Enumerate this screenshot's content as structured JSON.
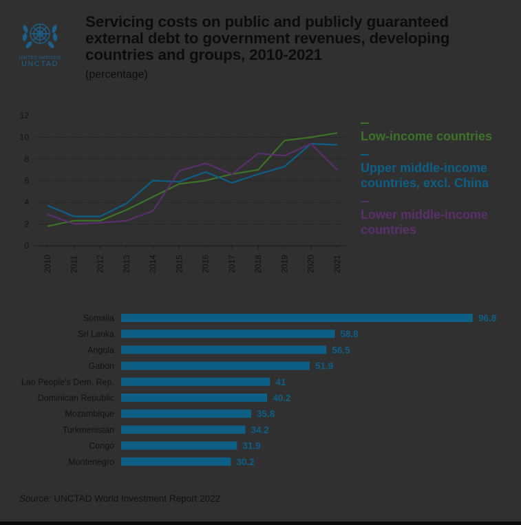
{
  "logo": {
    "line1": "UNITED NATIONS",
    "line2": "UNCTAD"
  },
  "header": {
    "title": "Servicing costs on public and publicly guaranteed external debt to government revenues, developing countries and groups, 2010-2021",
    "subtitle": "(percentage)"
  },
  "source": {
    "label": "Source:",
    "text": " UNCTAD World Investment Report 2022."
  },
  "colors": {
    "low_income": "#3d7328",
    "upper_middle": "#0e5f86",
    "lower_middle": "#5b2f6b",
    "bar": "#0e5f86",
    "axis_text": "#111111",
    "grid": "#1a1a1a"
  },
  "chart_data": [
    {
      "type": "line",
      "x": [
        "2010",
        "2011",
        "2012",
        "2013",
        "2014",
        "2015",
        "2016",
        "2017",
        "2018",
        "2019",
        "2020",
        "2021"
      ],
      "ylim": [
        0,
        12
      ],
      "yticks": [
        0,
        2,
        4,
        6,
        8,
        10,
        12
      ],
      "grid": true,
      "legend_position": "right",
      "series": [
        {
          "name": "Low-income countries",
          "color_key": "low_income",
          "values": [
            1.8,
            2.3,
            2.3,
            3.3,
            4.5,
            5.7,
            6.0,
            6.6,
            7.0,
            9.7,
            10.0,
            10.4
          ]
        },
        {
          "name": "Upper middle-income countries, excl. China",
          "color_key": "upper_middle",
          "values": [
            3.7,
            2.7,
            2.7,
            3.9,
            6.0,
            5.9,
            6.8,
            5.8,
            6.6,
            7.3,
            9.4,
            9.3
          ]
        },
        {
          "name": "Lower middle-income countries",
          "color_key": "lower_middle",
          "values": [
            2.9,
            2.0,
            2.1,
            2.3,
            3.2,
            6.9,
            7.6,
            6.6,
            8.5,
            8.3,
            9.4,
            7.0
          ]
        }
      ],
      "legend": [
        {
          "lines": [
            "Low-income countries"
          ],
          "color_key": "low_income"
        },
        {
          "lines": [
            "Upper middle-income",
            "countries, excl. China"
          ],
          "color_key": "upper_middle"
        },
        {
          "lines": [
            "Lower middle-income",
            "countries"
          ],
          "color_key": "lower_middle"
        }
      ]
    },
    {
      "type": "bar",
      "orientation": "horizontal",
      "categories": [
        "Somalia",
        "Sri Lanka",
        "Angola",
        "Gabon",
        "Lao People's Dem. Rep.",
        "Dominican Republic",
        "Mozambique",
        "Turkmenistan",
        "Congo",
        "Montenegro"
      ],
      "values": [
        96.8,
        58.8,
        56.5,
        51.9,
        41,
        40.2,
        35.8,
        34.2,
        31.9,
        30.2
      ],
      "labels": [
        "96.8",
        "58.8",
        "56.5",
        "51.9",
        "41",
        "40.2",
        "35.8",
        "34.2",
        "31.9",
        "30.2"
      ]
    }
  ]
}
